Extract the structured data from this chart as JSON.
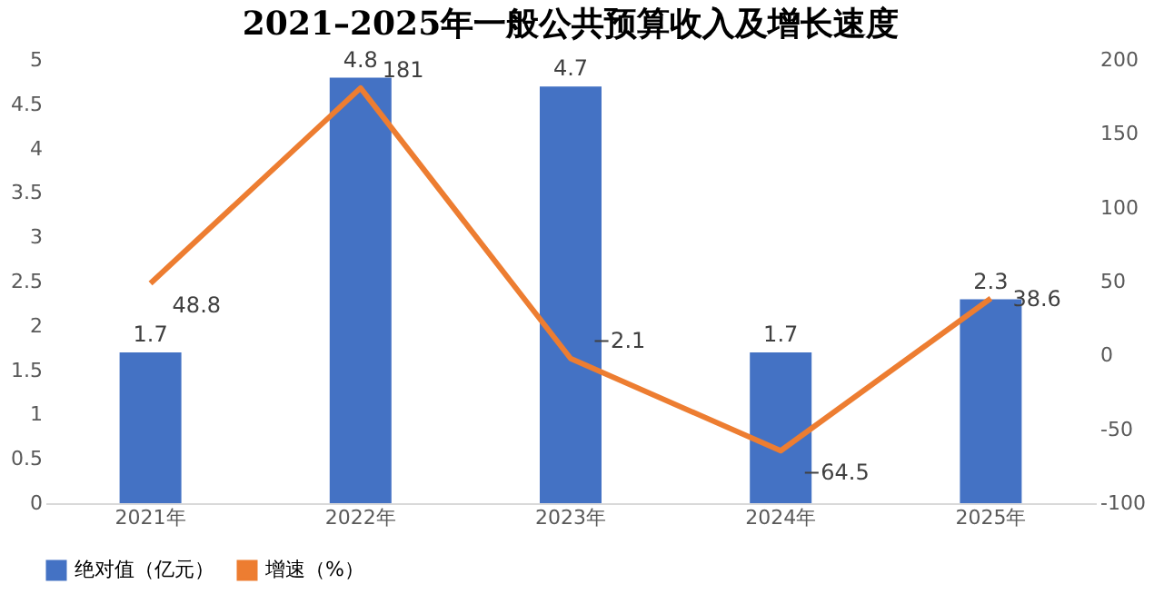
{
  "chart_data": {
    "type": "bar",
    "title": "2021–2025年一般公共预算收入及增长速度",
    "categories": [
      "2021年",
      "2022年",
      "2023年",
      "2024年",
      "2025年"
    ],
    "series": [
      {
        "name": "绝对值（亿元）",
        "color": "#4472c4",
        "values": [
          1.7,
          4.8,
          4.7,
          1.7,
          2.3
        ]
      },
      {
        "name": "增速（%）",
        "type": "line",
        "axis": "y2",
        "color": "#ed7d31",
        "values": [
          48.8,
          181,
          -2.1,
          -64.5,
          38.6
        ]
      }
    ],
    "ylim": [
      0,
      5
    ],
    "yticks": [
      0,
      0.5,
      1,
      1.5,
      2,
      2.5,
      3,
      3.5,
      4,
      4.5,
      5
    ],
    "y2lim": [
      -100,
      200
    ],
    "y2ticks": [
      -100,
      -50,
      0,
      50,
      100,
      150,
      200
    ],
    "data_labels": true,
    "legend": "bottom",
    "grid": false,
    "marker": "none",
    "line_style": "solid"
  }
}
